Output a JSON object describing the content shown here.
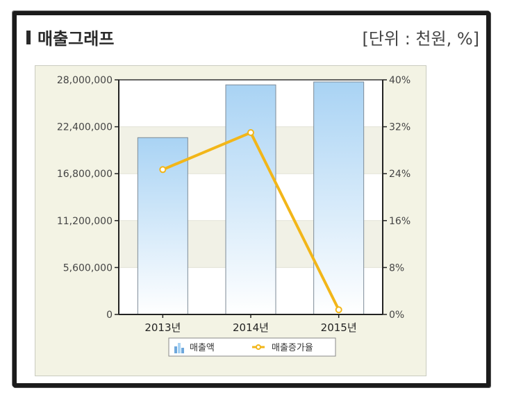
{
  "header": {
    "title": "매출그래프",
    "unit": "[단위 : 천원, %]"
  },
  "colors": {
    "bar_top": "#a9d3f4",
    "bar_bottom": "#ffffff",
    "line": "#f2b619",
    "plot_band_a": "#ffffff",
    "plot_band_b": "#f1f1e6"
  },
  "chart_data": {
    "type": "bar",
    "categories": [
      "2013년",
      "2014년",
      "2015년"
    ],
    "series": [
      {
        "name": "매출액",
        "type": "bar",
        "axis": "left",
        "values": [
          21100000,
          27400000,
          27750000
        ]
      },
      {
        "name": "매출증가율",
        "type": "line",
        "axis": "right",
        "values": [
          24.7,
          31.0,
          0.8
        ]
      }
    ],
    "y_left": {
      "ylim": [
        0,
        28000000
      ],
      "ticks": [
        "0",
        "5,600,000",
        "11,200,000",
        "16,800,000",
        "22,400,000",
        "28,000,000"
      ]
    },
    "y_right": {
      "ylim": [
        0,
        40
      ],
      "ticks": [
        "0%",
        "8%",
        "16%",
        "24%",
        "32%",
        "40%"
      ]
    },
    "legend": {
      "placement": "bottom-center",
      "items": [
        {
          "label": "매출액",
          "icon": "bar-chart-icon"
        },
        {
          "label": "매출증가율",
          "icon": "line-marker-icon"
        }
      ]
    }
  }
}
